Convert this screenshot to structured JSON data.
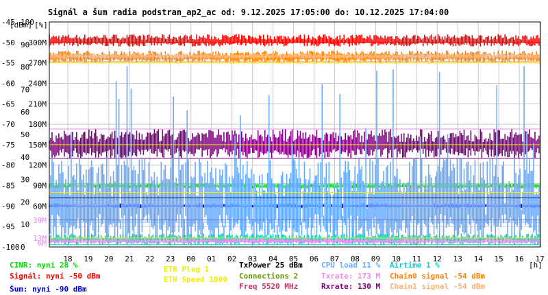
{
  "chart_data": {
    "type": "line",
    "title": "Signál a šum radia podstran_ap2_ac od: 9.12.2025 17:05:00 do: 10.12.2025 17:04:00",
    "axis_units": {
      "dbm": "[dBm]",
      "pct": "[%]",
      "h": "[h]"
    },
    "y_dbm_ticks": [
      "-45",
      "-50",
      "-55",
      "-60",
      "-65",
      "-70",
      "-75",
      "-80",
      "-85",
      "-90",
      "-95",
      "-100"
    ],
    "y_pct_ticks": [
      "100",
      "90",
      "80",
      "70",
      "60",
      "50",
      "40",
      "30",
      "20",
      "10",
      "0"
    ],
    "y_rate_ticks": [
      "300M",
      "270M",
      "240M",
      "210M",
      "180M",
      "150M",
      "120M",
      "90M",
      "60M"
    ],
    "y_rate_low_ticks": [
      "39M",
      "13M",
      "6M"
    ],
    "x_ticks": [
      "18",
      "19",
      "20",
      "21",
      "22",
      "23",
      "00",
      "01",
      "02",
      "03",
      "04",
      "05",
      "06",
      "07",
      "08",
      "09",
      "10",
      "11",
      "12",
      "13",
      "14",
      "15",
      "16",
      "17"
    ],
    "ylim_dbm": [
      -100,
      -45
    ],
    "ylim_pct": [
      0,
      100
    ],
    "ylim_rate": [
      0,
      330
    ],
    "grid": true,
    "series": [
      {
        "name": "Signál",
        "axis": "dbm",
        "color": "#ff0000",
        "value": -50,
        "band": [
          -51,
          -48
        ]
      },
      {
        "name": "Šum",
        "axis": "dbm",
        "color": "#0000cc",
        "value": -90,
        "band": [
          -90.5,
          -89.3
        ]
      },
      {
        "name": "CINR",
        "axis": "pct",
        "color": "#00dd00",
        "value": 28,
        "band": [
          26,
          28
        ]
      },
      {
        "name": "Rxrate",
        "axis": "rate",
        "color": "#800080",
        "value": 130,
        "band": [
          130,
          173
        ]
      },
      {
        "name": "Chain0 signal",
        "axis": "rate",
        "color": "#ff8000",
        "value": 270,
        "band": [
          270,
          288
        ]
      },
      {
        "name": "Chain1 signal",
        "axis": "rate",
        "color": "#ffb070",
        "value": 272,
        "band": [
          276,
          284
        ]
      },
      {
        "name": "CPU load",
        "axis": "pct",
        "color": "#66aaff",
        "value": 11,
        "band": [
          1,
          40
        ]
      },
      {
        "name": "Airtime",
        "axis": "pct",
        "color": "#00cccc",
        "value": 1,
        "band": [
          1,
          6
        ]
      },
      {
        "name": "Txrate",
        "axis": "rate",
        "color": "#ee88ee",
        "value": 173,
        "band": [
          5,
          13
        ]
      }
    ],
    "reference_lines": [
      {
        "axis": "rate",
        "value": 270,
        "color": "#eeee00"
      },
      {
        "axis": "rate",
        "value": 150,
        "color": "#eeee00"
      },
      {
        "axis": "rate",
        "value": 80,
        "color": "#eeee00"
      },
      {
        "axis": "dbm",
        "value": -88,
        "color": "#000066"
      },
      {
        "axis": "pct",
        "value": 12,
        "color": "#6666cc"
      },
      {
        "axis": "pct",
        "value": 4,
        "color": "#eeee00"
      }
    ]
  },
  "legend": {
    "col1": [
      {
        "text": "CINR: nyní 28 %",
        "color": "#00dd00"
      },
      {
        "text": "Signál: nyní -50 dBm",
        "color": "#ff0000"
      },
      {
        "text": "Šum: nyní -90 dBm",
        "color": "#0000cc"
      }
    ],
    "col2": [
      {
        "text": "ETH Plug 1",
        "color": "#eeee00"
      },
      {
        "text": "ETH Speed 1000",
        "color": "#eeee00"
      }
    ],
    "col3": [
      {
        "text": "TxPower 25 dBm",
        "color": "#000000"
      },
      {
        "text": "Connections 2",
        "color": "#669900"
      },
      {
        "text": "Freq 5520 MHz",
        "color": "#cc3366"
      }
    ],
    "col4": [
      {
        "text": "CPU load 11 %",
        "color": "#66aaff"
      },
      {
        "text": "Txrate: 173 M",
        "color": "#ee88ee"
      },
      {
        "text": "Rxrate: 130 M",
        "color": "#800080"
      }
    ],
    "col5": [
      {
        "text": "Airtime 1 %",
        "color": "#00cccc"
      },
      {
        "text": "Chain0 signal -54 dBm",
        "color": "#ff8000"
      },
      {
        "text": "Chain1 signal -54 dBm",
        "color": "#ffb070"
      }
    ]
  }
}
